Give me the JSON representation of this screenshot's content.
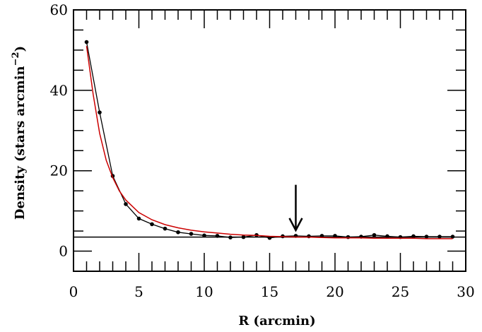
{
  "chart_data": {
    "type": "line",
    "title": "",
    "xlabel": "R  (arcmin)",
    "ylabel_main": "Density (stars arcmin",
    "ylabel_exp": "−2",
    "ylabel_close": ")",
    "xlim": [
      0,
      30
    ],
    "ylim": [
      -5,
      60
    ],
    "x_ticks": [
      0,
      5,
      10,
      15,
      20,
      25,
      30
    ],
    "y_ticks": [
      0,
      20,
      40,
      60
    ],
    "grid": false,
    "legend": "none",
    "background_level": 3.5,
    "arrow_at_x": 17,
    "series": [
      {
        "kind": "observed",
        "color": "#000000",
        "x": [
          1,
          2,
          3,
          4,
          5,
          6,
          7,
          8,
          9,
          10,
          11,
          12,
          13,
          14,
          15,
          16,
          17,
          18,
          19,
          20,
          21,
          22,
          23,
          24,
          25,
          26,
          27,
          28,
          29
        ],
        "y": [
          52,
          34.5,
          18.7,
          11.7,
          8.1,
          6.7,
          5.6,
          4.7,
          4.3,
          3.9,
          3.8,
          3.4,
          3.5,
          4.0,
          3.3,
          3.7,
          3.8,
          3.7,
          3.8,
          3.8,
          3.5,
          3.6,
          4.0,
          3.7,
          3.5,
          3.7,
          3.6,
          3.6,
          3.6
        ]
      },
      {
        "kind": "fit",
        "color": "#cc0000",
        "x": [
          1,
          1.5,
          2,
          2.5,
          3,
          3.5,
          4,
          5,
          6,
          7,
          8,
          9,
          10,
          11,
          12,
          13,
          14,
          15,
          16,
          17,
          18,
          19,
          20,
          21,
          22,
          23,
          24,
          25,
          26,
          27,
          28,
          29
        ],
        "y": [
          51.0,
          39.0,
          29.3,
          22.6,
          18.3,
          15.0,
          12.7,
          9.6,
          7.8,
          6.6,
          5.8,
          5.2,
          4.8,
          4.5,
          4.2,
          4.0,
          3.9,
          3.7,
          3.6,
          3.5,
          3.5,
          3.4,
          3.3,
          3.3,
          3.3,
          3.2,
          3.2,
          3.2,
          3.2,
          3.1,
          3.1,
          3.1
        ]
      }
    ]
  }
}
